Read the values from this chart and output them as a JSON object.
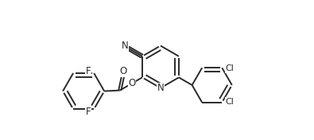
{
  "bg_color": "#ffffff",
  "line_color": "#2a2a2a",
  "font_size": 8.5,
  "lw": 1.4,
  "fig_w": 3.95,
  "fig_h": 1.76,
  "xlim": [
    0,
    3.95
  ],
  "ylim": [
    0,
    1.76
  ]
}
